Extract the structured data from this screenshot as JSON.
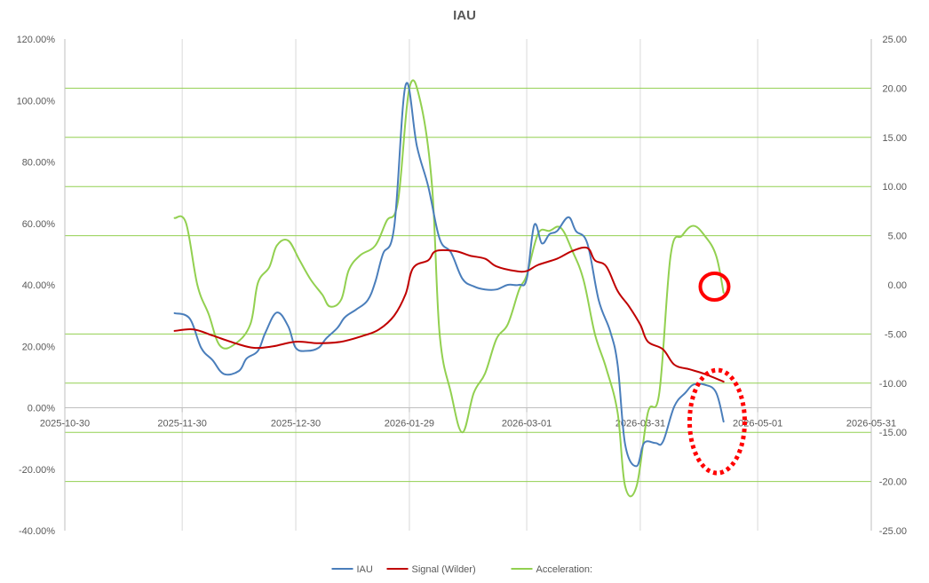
{
  "chart_data": {
    "type": "line",
    "title": "IAU",
    "x_ticks": [
      "2025-10-30",
      "2025-11-30",
      "2025-12-30",
      "2026-01-29",
      "2026-03-01",
      "2026-03-31",
      "2026-05-01",
      "2026-05-31"
    ],
    "y_left_ticks": [
      "120.00%",
      "100.00%",
      "80.00%",
      "60.00%",
      "40.00%",
      "20.00%",
      "0.00%",
      "-20.00%",
      "-40.00%"
    ],
    "y_right_ticks": [
      "25.00",
      "20.00",
      "15.00",
      "10.00",
      "5.00",
      "0.00",
      "-5.00",
      "-10.00",
      "-15.00",
      "-20.00",
      "-25.00"
    ],
    "ylim_left": [
      -40,
      120
    ],
    "ylim_right": [
      -25,
      25
    ],
    "grid": "vertical gridlines at date ticks; horizontal gridlines at right-axis ticks",
    "legend_position": "bottom",
    "series": [
      {
        "name": "IAU",
        "axis": "left",
        "color": "#4a7ebb",
        "points": [
          [
            "2025-11-28",
            30.8
          ],
          [
            "2025-12-02",
            29.0
          ],
          [
            "2025-12-05",
            19.5
          ],
          [
            "2025-12-08",
            15.5
          ],
          [
            "2025-12-11",
            11.0
          ],
          [
            "2025-12-15",
            12.0
          ],
          [
            "2025-12-17",
            16.0
          ],
          [
            "2025-12-20",
            18.5
          ],
          [
            "2025-12-22",
            24.5
          ],
          [
            "2025-12-25",
            31.0
          ],
          [
            "2025-12-28",
            26.5
          ],
          [
            "2025-12-30",
            19.5
          ],
          [
            "2026-01-02",
            18.5
          ],
          [
            "2026-01-05",
            19.5
          ],
          [
            "2026-01-07",
            22.5
          ],
          [
            "2026-01-10",
            26.0
          ],
          [
            "2026-01-12",
            29.5
          ],
          [
            "2026-01-15",
            32.0
          ],
          [
            "2026-01-18",
            35.0
          ],
          [
            "2026-01-20",
            41.0
          ],
          [
            "2026-01-22",
            50.0
          ],
          [
            "2026-01-25",
            59.0
          ],
          [
            "2026-01-28",
            105.0
          ],
          [
            "2026-01-31",
            85.0
          ],
          [
            "2026-02-03",
            72.0
          ],
          [
            "2026-02-06",
            55.0
          ],
          [
            "2026-02-09",
            50.5
          ],
          [
            "2026-02-12",
            42.0
          ],
          [
            "2026-02-15",
            39.5
          ],
          [
            "2026-02-18",
            38.5
          ],
          [
            "2026-02-21",
            38.5
          ],
          [
            "2026-02-24",
            40.0
          ],
          [
            "2026-02-27",
            40.0
          ],
          [
            "2026-03-01",
            42.0
          ],
          [
            "2026-03-03",
            59.5
          ],
          [
            "2026-03-05",
            53.5
          ],
          [
            "2026-03-07",
            56.5
          ],
          [
            "2026-03-09",
            57.5
          ],
          [
            "2026-03-12",
            62.0
          ],
          [
            "2026-03-14",
            57.5
          ],
          [
            "2026-03-17",
            53.5
          ],
          [
            "2026-03-20",
            35.0
          ],
          [
            "2026-03-23",
            25.0
          ],
          [
            "2026-03-25",
            14.0
          ],
          [
            "2026-03-27",
            -12.0
          ],
          [
            "2026-03-30",
            -19.0
          ],
          [
            "2026-04-01",
            -11.5
          ],
          [
            "2026-04-04",
            -11.5
          ],
          [
            "2026-04-06",
            -11.0
          ],
          [
            "2026-04-09",
            0.5
          ],
          [
            "2026-04-12",
            5.0
          ],
          [
            "2026-04-14",
            7.5
          ],
          [
            "2026-04-17",
            7.5
          ],
          [
            "2026-04-20",
            5.0
          ],
          [
            "2026-04-22",
            -4.5
          ]
        ]
      },
      {
        "name": "Signal (Wilder)",
        "axis": "left",
        "color": "#c00000",
        "points": [
          [
            "2025-11-28",
            25.0
          ],
          [
            "2025-12-03",
            25.5
          ],
          [
            "2025-12-08",
            23.5
          ],
          [
            "2025-12-14",
            21.0
          ],
          [
            "2025-12-19",
            19.5
          ],
          [
            "2025-12-24",
            20.0
          ],
          [
            "2025-12-30",
            21.5
          ],
          [
            "2026-01-05",
            21.0
          ],
          [
            "2026-01-11",
            21.5
          ],
          [
            "2026-01-17",
            23.5
          ],
          [
            "2026-01-21",
            25.5
          ],
          [
            "2026-01-25",
            30.0
          ],
          [
            "2026-01-28",
            37.0
          ],
          [
            "2026-01-30",
            45.5
          ],
          [
            "2026-02-03",
            48.0
          ],
          [
            "2026-02-05",
            51.0
          ],
          [
            "2026-02-10",
            51.0
          ],
          [
            "2026-02-14",
            49.5
          ],
          [
            "2026-02-18",
            48.5
          ],
          [
            "2026-02-21",
            46.0
          ],
          [
            "2026-02-26",
            44.5
          ],
          [
            "2026-03-01",
            44.5
          ],
          [
            "2026-03-04",
            46.5
          ],
          [
            "2026-03-09",
            48.5
          ],
          [
            "2026-03-13",
            51.0
          ],
          [
            "2026-03-17",
            52.0
          ],
          [
            "2026-03-19",
            48.0
          ],
          [
            "2026-03-22",
            46.0
          ],
          [
            "2026-03-25",
            38.0
          ],
          [
            "2026-03-28",
            33.0
          ],
          [
            "2026-03-31",
            27.0
          ],
          [
            "2026-04-02",
            21.5
          ],
          [
            "2026-04-06",
            19.0
          ],
          [
            "2026-04-09",
            14.0
          ],
          [
            "2026-04-13",
            12.5
          ],
          [
            "2026-04-17",
            11.0
          ],
          [
            "2026-04-22",
            8.5
          ]
        ]
      },
      {
        "name": "Acceleration:",
        "axis": "right",
        "color": "#92d050",
        "points": [
          [
            "2025-11-28",
            6.8
          ],
          [
            "2025-12-01",
            6.3
          ],
          [
            "2025-12-04",
            0.0
          ],
          [
            "2025-12-07",
            -3.0
          ],
          [
            "2025-12-10",
            -6.2
          ],
          [
            "2025-12-14",
            -6.0
          ],
          [
            "2025-12-18",
            -4.0
          ],
          [
            "2025-12-20",
            0.2
          ],
          [
            "2025-12-23",
            1.8
          ],
          [
            "2025-12-25",
            4.0
          ],
          [
            "2025-12-28",
            4.5
          ],
          [
            "2025-12-31",
            2.5
          ],
          [
            "2026-01-03",
            0.5
          ],
          [
            "2026-01-06",
            -1.0
          ],
          [
            "2026-01-08",
            -2.2
          ],
          [
            "2026-01-11",
            -1.5
          ],
          [
            "2026-01-13",
            1.5
          ],
          [
            "2026-01-16",
            3.0
          ],
          [
            "2026-01-20",
            4.0
          ],
          [
            "2026-01-23",
            6.5
          ],
          [
            "2026-01-26",
            8.5
          ],
          [
            "2026-01-29",
            20.0
          ],
          [
            "2026-02-01",
            18.5
          ],
          [
            "2026-02-04",
            10.0
          ],
          [
            "2026-02-06",
            -5.0
          ],
          [
            "2026-02-09",
            -11.0
          ],
          [
            "2026-02-12",
            -15.0
          ],
          [
            "2026-02-15",
            -11.0
          ],
          [
            "2026-02-18",
            -9.0
          ],
          [
            "2026-02-21",
            -5.5
          ],
          [
            "2026-02-24",
            -4.0
          ],
          [
            "2026-02-27",
            -0.5
          ],
          [
            "2026-03-01",
            1.0
          ],
          [
            "2026-03-04",
            5.2
          ],
          [
            "2026-03-07",
            5.5
          ],
          [
            "2026-03-10",
            5.8
          ],
          [
            "2026-03-13",
            3.5
          ],
          [
            "2026-03-16",
            0.5
          ],
          [
            "2026-03-19",
            -5.0
          ],
          [
            "2026-03-22",
            -8.5
          ],
          [
            "2026-03-25",
            -13.0
          ],
          [
            "2026-03-27",
            -20.5
          ],
          [
            "2026-03-30",
            -20.5
          ],
          [
            "2026-04-02",
            -13.0
          ],
          [
            "2026-04-05",
            -11.0
          ],
          [
            "2026-04-08",
            3.0
          ],
          [
            "2026-04-11",
            5.0
          ],
          [
            "2026-04-14",
            6.0
          ],
          [
            "2026-04-17",
            5.0
          ],
          [
            "2026-04-20",
            3.0
          ],
          [
            "2026-04-22",
            -0.8
          ]
        ]
      }
    ],
    "annotations": [
      {
        "shape": "solid-circle",
        "color": "#ff0000",
        "x": "2026-04-21",
        "y_right": 0.0
      },
      {
        "shape": "dotted-ellipse",
        "color": "#ff0000",
        "x": "2026-04-21",
        "y_left": -4.5
      }
    ]
  }
}
